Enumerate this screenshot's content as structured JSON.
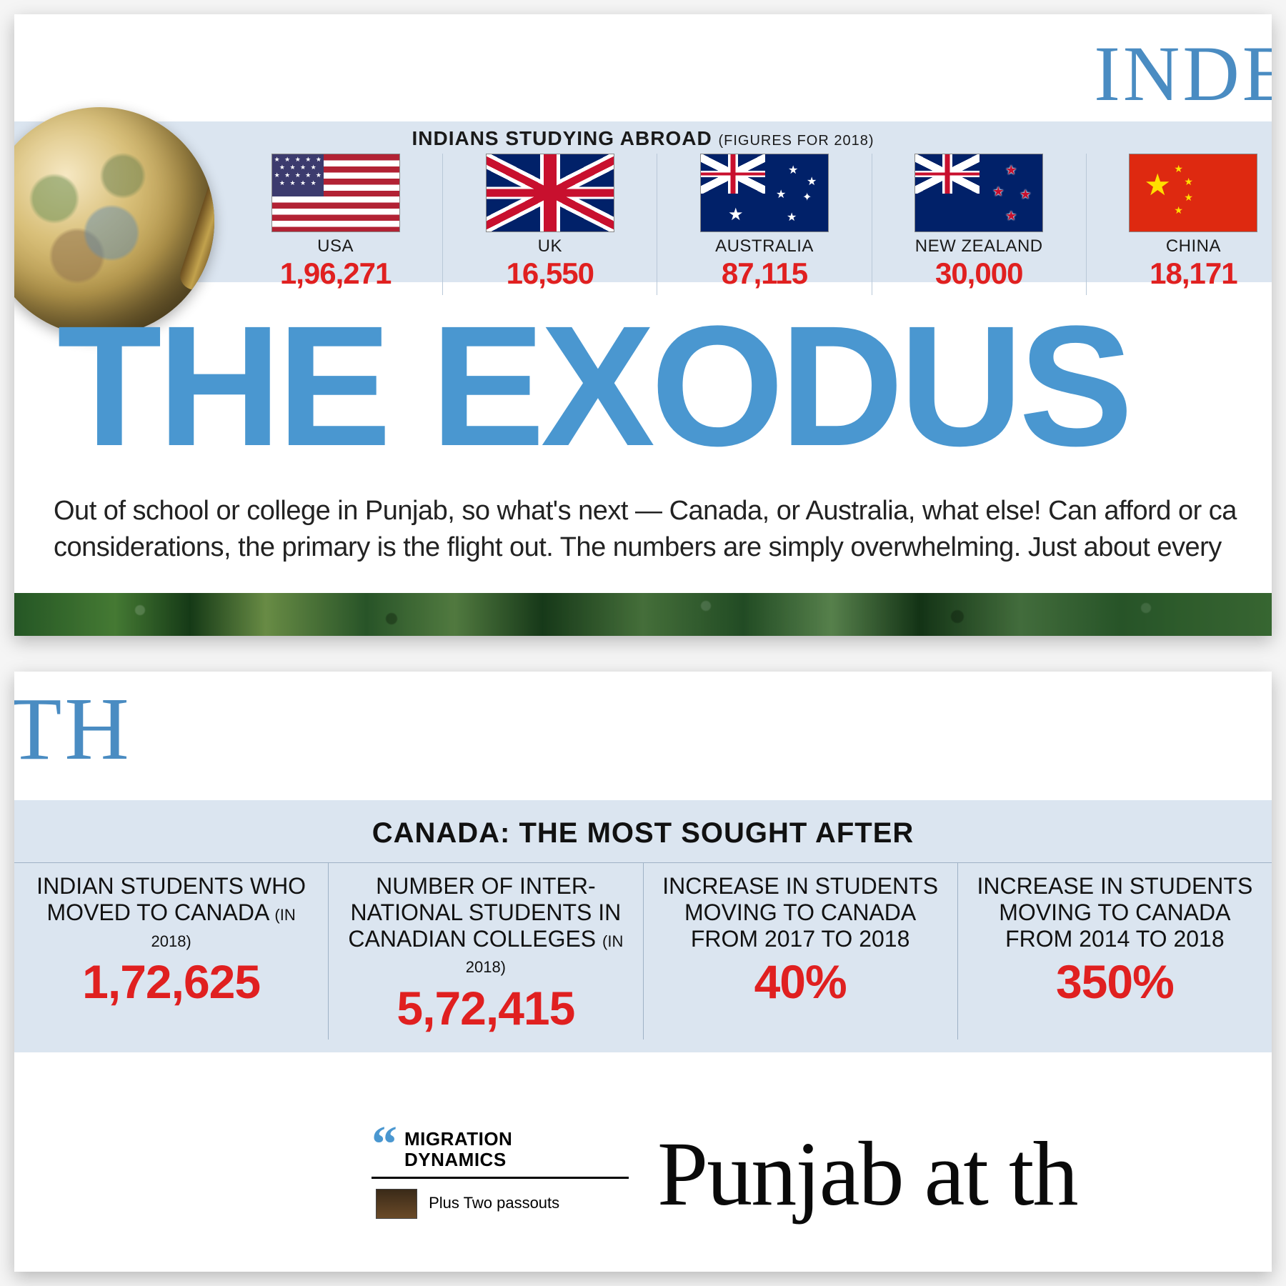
{
  "colors": {
    "blue_mast": "#4a8cc2",
    "headline_blue": "#4a97d0",
    "stat_red": "#e02020",
    "panel_blue": "#dbe5f0",
    "text": "#111111",
    "border": "#9fb2c6",
    "china_red": "#de2910",
    "china_gold": "#ffde00",
    "uk_blue": "#012169",
    "uk_red": "#c8102e",
    "us_red": "#b22234",
    "us_blue": "#3c3b6e"
  },
  "top": {
    "masthead_fragment": "INDE",
    "flagbar_title": "INDIANS STUDYING ABROAD",
    "flagbar_sub": "(FIGURES FOR 2018)",
    "countries": [
      {
        "name": "USA",
        "value": "1,96,271",
        "flag": "usa"
      },
      {
        "name": "UK",
        "value": "16,550",
        "flag": "uk"
      },
      {
        "name": "AUSTRALIA",
        "value": "87,115",
        "flag": "aus"
      },
      {
        "name": "NEW ZEALAND",
        "value": "30,000",
        "flag": "nz"
      },
      {
        "name": "CHINA",
        "value": "18,171",
        "flag": "china"
      }
    ],
    "headline": "THE EXODUS",
    "subhead_line1": "Out of school or college in Punjab, so what's next — Canada, or Australia, what else! Can afford or ca",
    "subhead_line2": "considerations, the primary is the flight out. The numbers are simply overwhelming. Just about every"
  },
  "bottom": {
    "masthead_fragment": "TH",
    "canada_title": "CANADA: THE MOST SOUGHT AFTER",
    "stats": [
      {
        "label": "INDIAN STUDENTS WHO MOVED TO CANADA",
        "paren": "(IN 2018)",
        "value": "1,72,625"
      },
      {
        "label": "NUMBER OF INTER-\nNATIONAL STUDENTS IN CANADIAN COLLEGES",
        "paren": "(IN 2018)",
        "value": "5,72,415"
      },
      {
        "label": "INCREASE IN STUDENTS MOVING TO CANADA FROM 2017 TO 2018",
        "paren": "",
        "value": "40%"
      },
      {
        "label": "INCREASE IN STUDENTS MOVING TO CANADA FROM 2014 TO 2018",
        "paren": "",
        "value": "350%"
      }
    ],
    "migration_title_l1": "MIGRATION",
    "migration_title_l2": "DYNAMICS",
    "migration_sub": "Plus Two passouts",
    "punjab_fragment": "Punjab at th"
  }
}
